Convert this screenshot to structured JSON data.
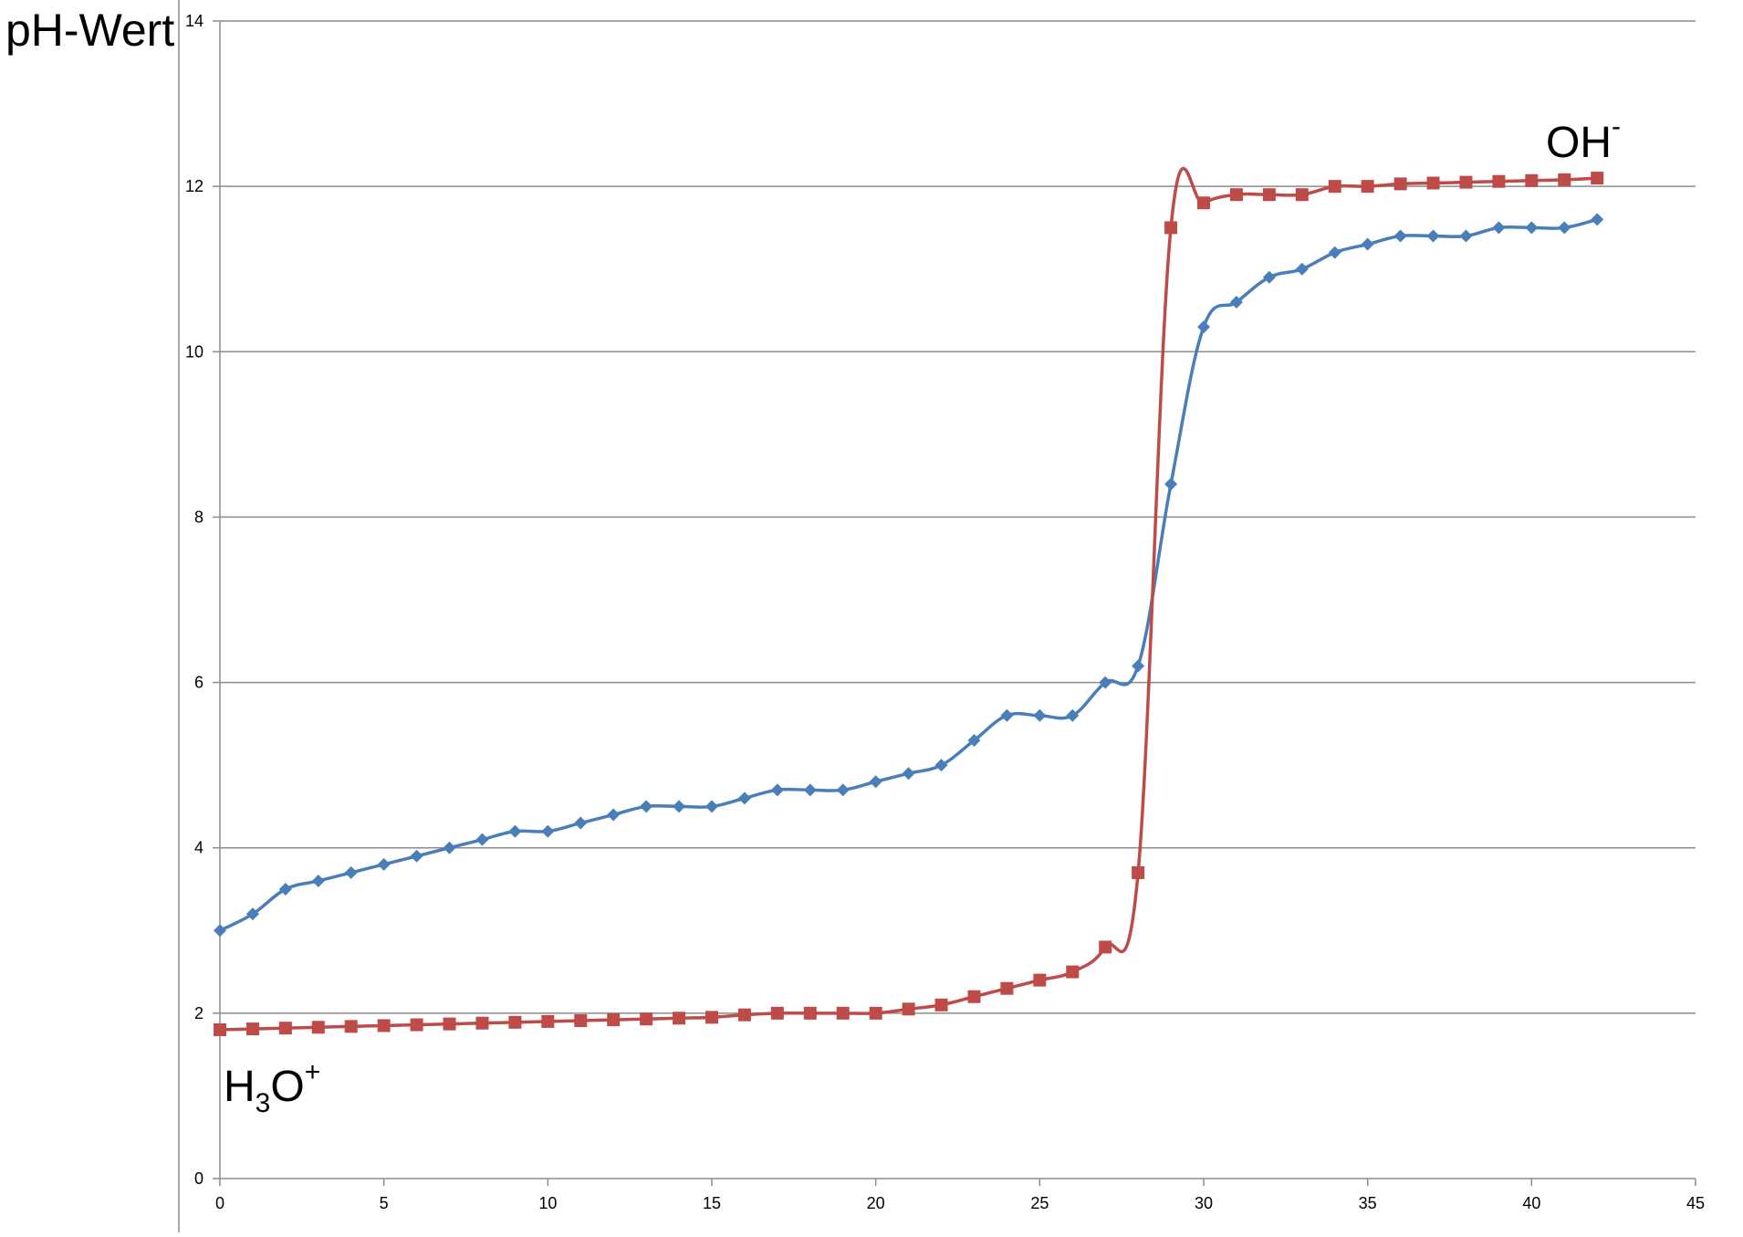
{
  "chart_data": {
    "type": "line",
    "title": "",
    "xlabel": "",
    "ylabel": "pH-Wert",
    "xlim": [
      0,
      45
    ],
    "ylim": [
      0,
      14
    ],
    "xticks": [
      0,
      5,
      10,
      15,
      20,
      25,
      30,
      35,
      40,
      45
    ],
    "yticks": [
      0,
      2,
      4,
      6,
      8,
      10,
      12,
      14
    ],
    "grid": "horizontal",
    "legend": "none",
    "annotations": [
      {
        "id": "oh",
        "base": "OH",
        "sup": "-",
        "series": "red"
      },
      {
        "id": "h3o",
        "base": "H",
        "sub": "3",
        "base2": "O",
        "sup": "+",
        "series": "red"
      }
    ],
    "series": [
      {
        "color": "#4a7ebb",
        "marker": "diamond",
        "x": [
          0,
          1,
          2,
          3,
          4,
          5,
          6,
          7,
          8,
          9,
          10,
          11,
          12,
          13,
          14,
          15,
          16,
          17,
          18,
          19,
          20,
          21,
          22,
          23,
          24,
          25,
          26,
          27,
          28,
          29,
          30,
          31,
          32,
          33,
          34,
          35,
          36,
          37,
          38,
          39,
          40,
          41,
          42
        ],
        "values": [
          3.0,
          3.2,
          3.5,
          3.6,
          3.7,
          3.8,
          3.9,
          4.0,
          4.1,
          4.2,
          4.2,
          4.3,
          4.4,
          4.5,
          4.5,
          4.5,
          4.6,
          4.7,
          4.7,
          4.7,
          4.8,
          4.9,
          5.0,
          5.3,
          5.6,
          5.6,
          5.6,
          6.0,
          6.2,
          8.4,
          10.3,
          10.6,
          10.9,
          11.0,
          11.2,
          11.3,
          11.4,
          11.4,
          11.4,
          11.5,
          11.5,
          11.5,
          11.6
        ]
      },
      {
        "color": "#be4b48",
        "marker": "square",
        "x": [
          0,
          1,
          2,
          3,
          4,
          5,
          6,
          7,
          8,
          9,
          10,
          11,
          12,
          13,
          14,
          15,
          16,
          17,
          18,
          19,
          20,
          21,
          22,
          23,
          24,
          25,
          26,
          27,
          28,
          29,
          30,
          31,
          32,
          33,
          34,
          35,
          36,
          37,
          38,
          39,
          40,
          41,
          42
        ],
        "values": [
          1.8,
          1.81,
          1.82,
          1.83,
          1.84,
          1.85,
          1.86,
          1.87,
          1.88,
          1.89,
          1.9,
          1.91,
          1.92,
          1.93,
          1.94,
          1.95,
          1.98,
          2.0,
          2.0,
          2.0,
          2.0,
          2.05,
          2.1,
          2.2,
          2.3,
          2.4,
          2.5,
          2.8,
          3.7,
          11.5,
          11.8,
          11.9,
          11.9,
          11.9,
          12.0,
          12.0,
          12.03,
          12.04,
          12.05,
          12.06,
          12.07,
          12.08,
          12.1
        ]
      }
    ]
  }
}
